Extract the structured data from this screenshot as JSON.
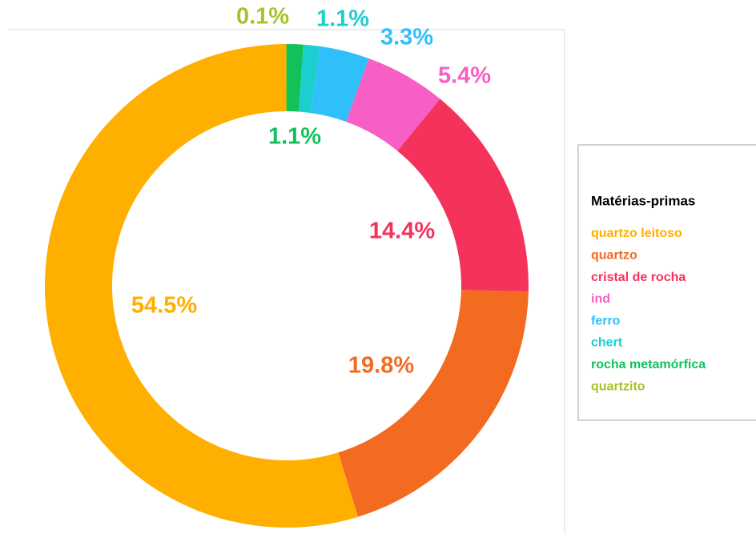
{
  "chart_data": {
    "type": "donut",
    "legend_title": "Matérias-primas",
    "categories": [
      "quartzo leitoso",
      "quartzo",
      "cristal de rocha",
      "ind",
      "ferro",
      "chert",
      "rocha metamórfica",
      "quartzito"
    ],
    "values": [
      54.5,
      19.8,
      14.4,
      5.4,
      3.3,
      1.1,
      1.1,
      0.1
    ],
    "value_labels": [
      "54.5%",
      "19.8%",
      "14.4%",
      "5.4%",
      "3.3%",
      "1.1%",
      "1.1%",
      "0.1%"
    ],
    "colors": [
      "#FFAF00",
      "#F26B21",
      "#F5325C",
      "#F75FC4",
      "#2FBFFA",
      "#1CCFCF",
      "#13C15A",
      "#A3C42A"
    ],
    "legend": "right"
  }
}
